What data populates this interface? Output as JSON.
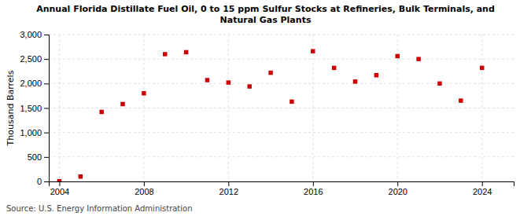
{
  "chart_data": {
    "type": "scatter",
    "title": "Annual Florida Distillate Fuel Oil, 0 to 15 ppm Sulfur Stocks at Refineries, Bulk Terminals, and\nNatural Gas Plants",
    "ylabel": "Thousand Barrels",
    "source": "Source: U.S. Energy Information Administration",
    "x": [
      2004,
      2005,
      2006,
      2007,
      2008,
      2009,
      2010,
      2011,
      2012,
      2013,
      2014,
      2015,
      2016,
      2017,
      2018,
      2019,
      2020,
      2021,
      2022,
      2023,
      2024
    ],
    "values": [
      5,
      100,
      1420,
      1580,
      1800,
      2600,
      2640,
      2070,
      2020,
      1940,
      2220,
      1630,
      2660,
      2320,
      2040,
      2170,
      2560,
      2500,
      2000,
      1650,
      2320
    ],
    "color": "#cc0000",
    "marker": "square",
    "xlim": [
      2003.5,
      2025.5
    ],
    "ylim": [
      0,
      3000
    ],
    "xticks": [
      2004,
      2008,
      2012,
      2016,
      2020,
      2024
    ],
    "yticks": [
      0,
      500,
      {
        "value": 1000,
        "label": "1,000"
      },
      {
        "value": 1500,
        "label": "1,500"
      },
      {
        "value": 2000,
        "label": "2,000"
      },
      {
        "value": 2500,
        "label": "2,500"
      },
      {
        "value": 3000,
        "label": "3,000"
      }
    ],
    "grid": true
  }
}
